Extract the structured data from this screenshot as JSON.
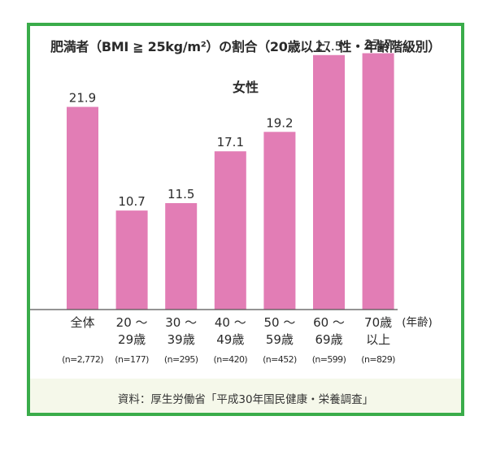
{
  "title": "肥満者（BMI ≧ 25kg/m²）の割合（20歳以上、性・年齢階級別）",
  "subtitle": "女性",
  "source": "資料：厚生労働省「平成30年国民健康・栄養調査」",
  "colors": {
    "bar": "#e27db5",
    "border": "#3aac4a",
    "axis": "#555555"
  },
  "chart_data": {
    "type": "bar",
    "title": "肥満者（BMI ≧ 25kg/m²）の割合（20歳以上、性・年齢階級別）",
    "subtitle": "女性",
    "categories": [
      {
        "line1": "全体",
        "line2": "",
        "n": "(n=2,772)"
      },
      {
        "line1": "20 ～",
        "line2": "29歳",
        "n": "(n=177)"
      },
      {
        "line1": "30 ～",
        "line2": "39歳",
        "n": "(n=295)"
      },
      {
        "line1": "40 ～",
        "line2": "49歳",
        "n": "(n=420)"
      },
      {
        "line1": "50 ～",
        "line2": "59歳",
        "n": "(n=452)"
      },
      {
        "line1": "60 ～",
        "line2": "69歳",
        "n": "(n=599)"
      },
      {
        "line1": "70歳",
        "line2": "以上",
        "n": "(n=829)"
      }
    ],
    "values": [
      21.9,
      10.7,
      11.5,
      17.1,
      19.2,
      27.5,
      27.7
    ],
    "value_labels": [
      "21.9",
      "10.7",
      "11.5",
      "17.1",
      "19.2",
      "27.5",
      "27.7"
    ],
    "xlabel": "(年齢)",
    "ylabel": "",
    "ylim": [
      0,
      30
    ],
    "grid": false,
    "legend": "none"
  }
}
